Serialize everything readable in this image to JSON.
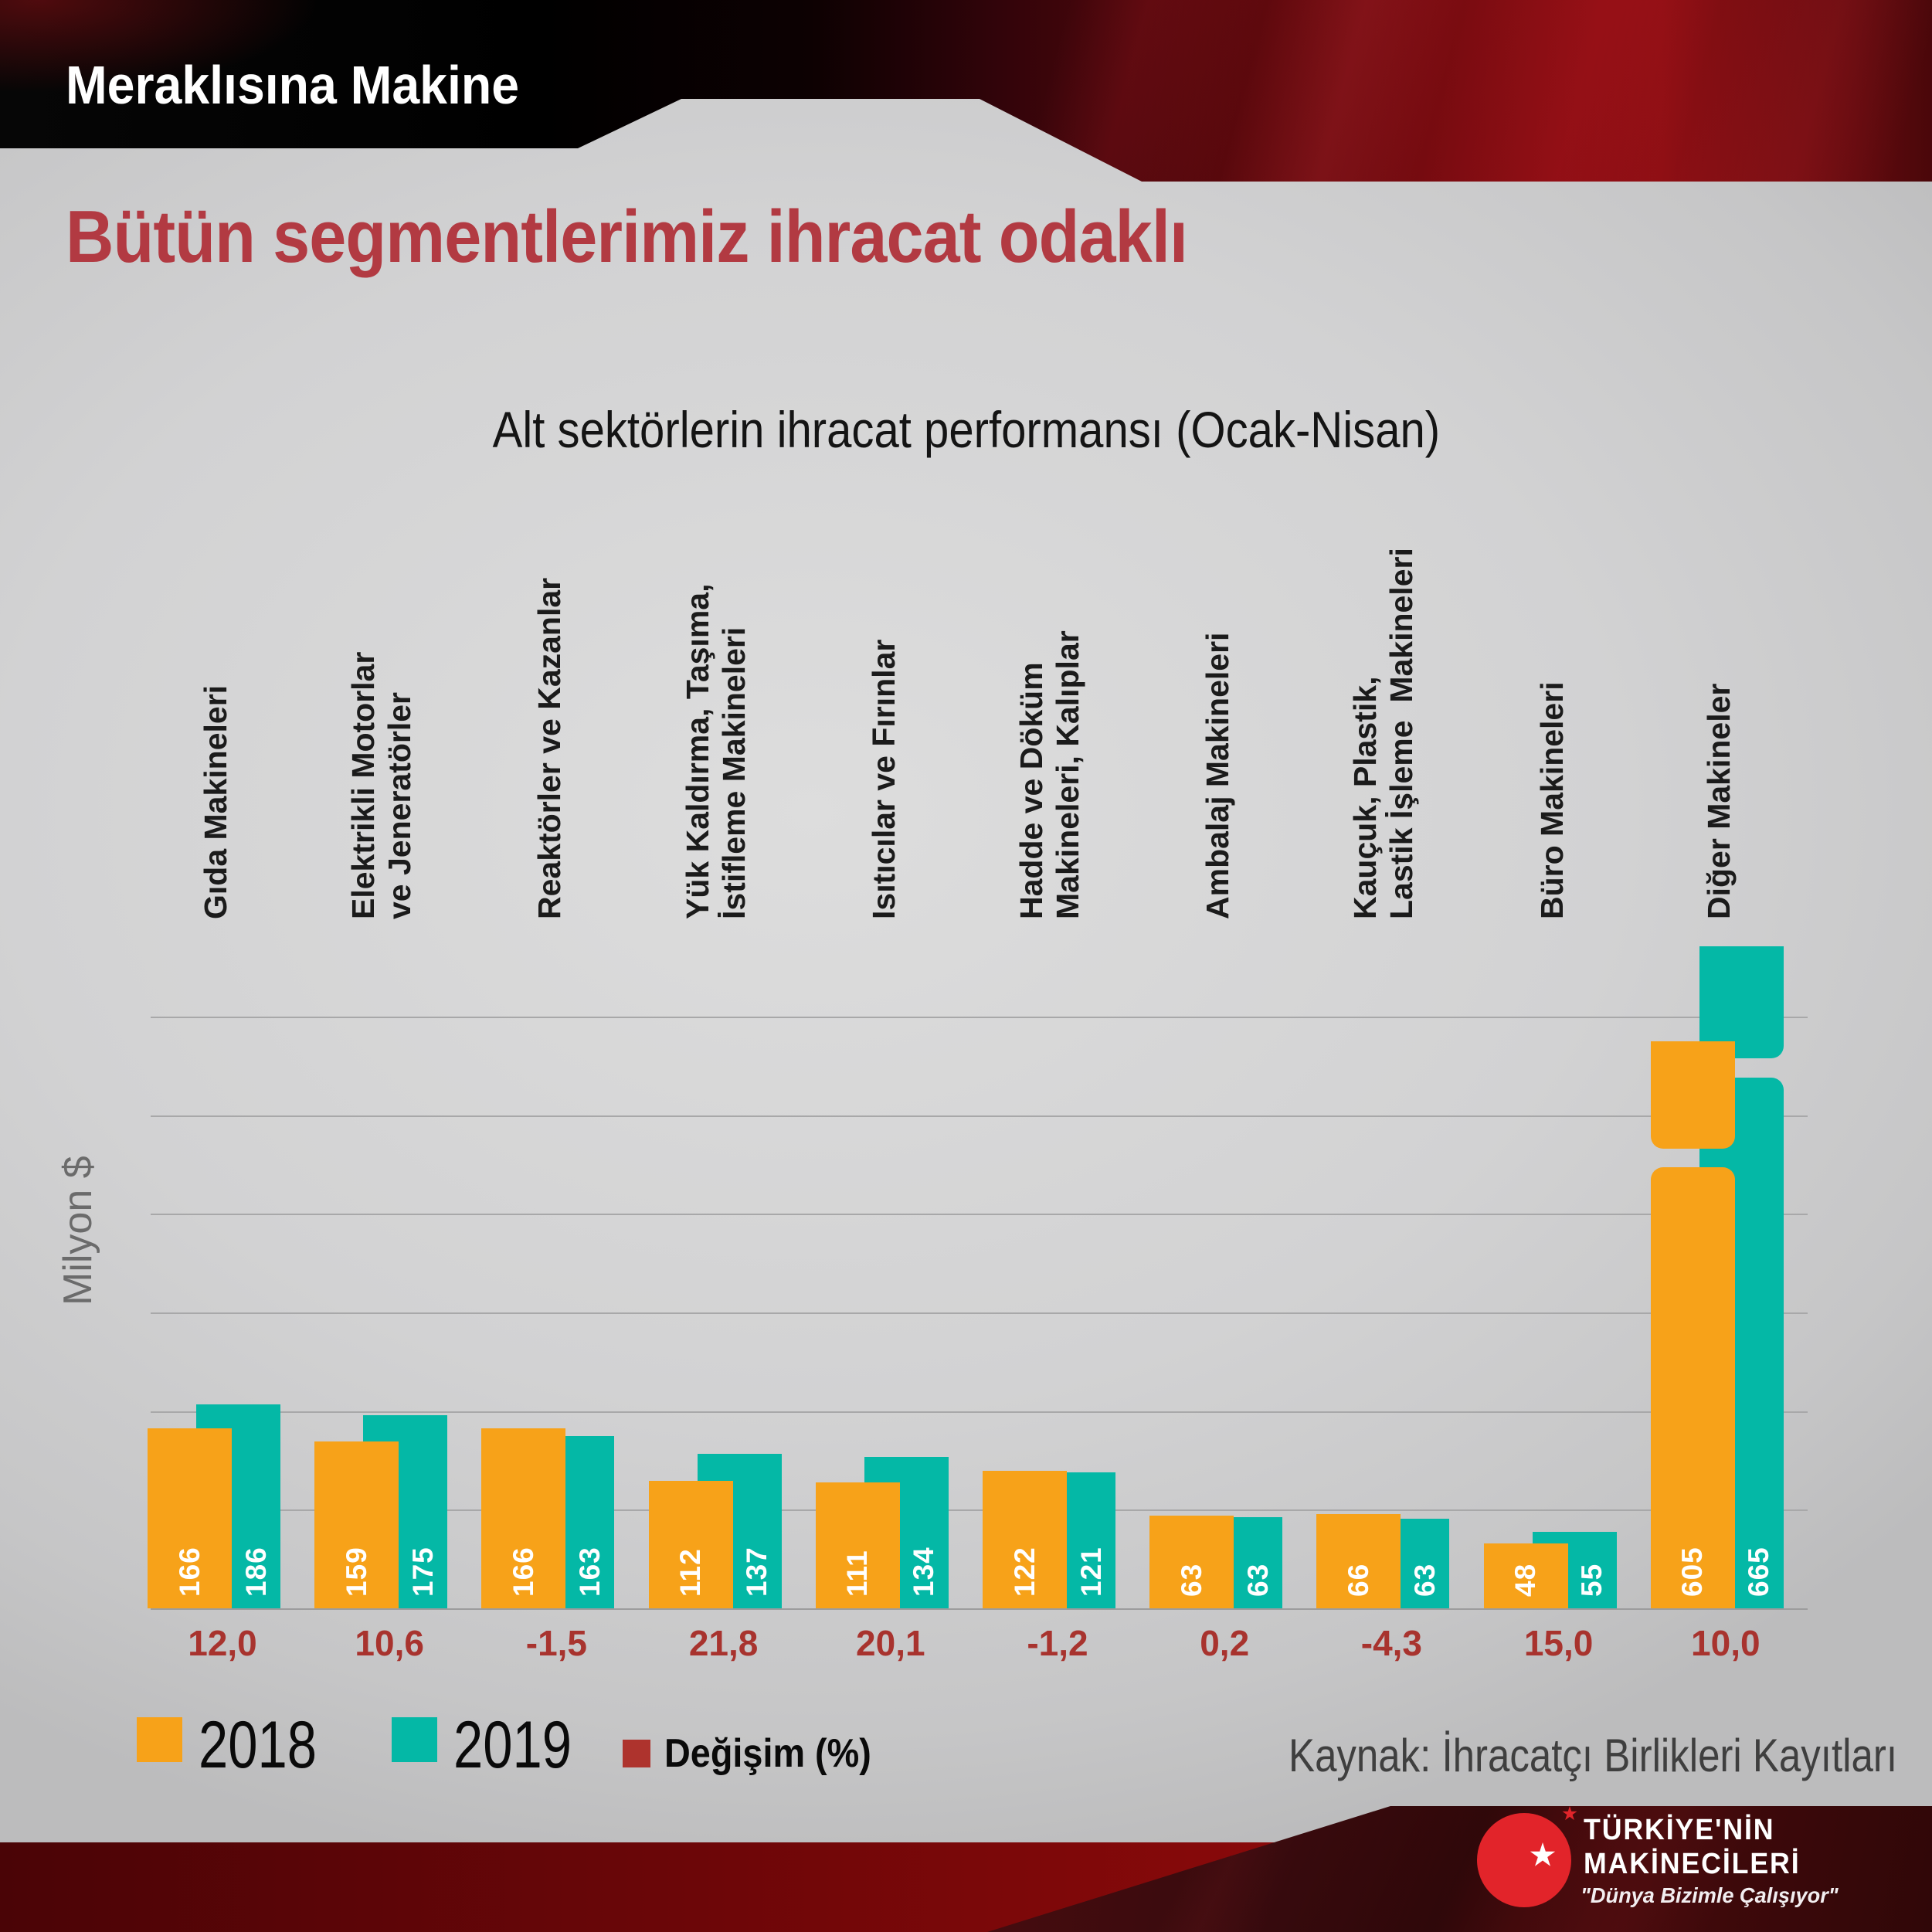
{
  "header": {
    "banner_title": "Meraklısına Makine",
    "page_title": "Bütün segmentlerimiz ihracat odaklı"
  },
  "chart_data": {
    "type": "bar",
    "title": "Alt sektörlerin ihracat performansı (Ocak-Nisan)",
    "ylabel": "Milyon $",
    "grid": "horizontal",
    "legend_position": "bottom-left",
    "categories": [
      "Gıda Makineleri",
      "Elektrikli Motorlar\nve Jeneratörler",
      "Reaktörler ve Kazanlar",
      "Yük Kaldırma, Taşıma,\nİstifleme Makineleri",
      "Isıtıcılar ve Fırınlar",
      "Hadde ve Döküm\nMakineleri, Kalıplar",
      "Ambalaj Makineleri",
      "Kauçuk, Plastik,\nLastik İşleme  Makineleri",
      "Büro Makineleri",
      "Diğer Makineler"
    ],
    "series": [
      {
        "name": "2018",
        "color": "#F7A219",
        "values": [
          166,
          159,
          166,
          112,
          111,
          122,
          63,
          66,
          48,
          605
        ]
      },
      {
        "name": "2019",
        "color": "#04B8A6",
        "values": [
          186,
          175,
          163,
          137,
          134,
          121,
          63,
          63,
          55,
          665
        ]
      }
    ],
    "change_percent": {
      "name": "Değişim (%)",
      "color": "#AE332D",
      "values": [
        "12,0",
        "10,6",
        "-1,5",
        "21,8",
        "20,1",
        "-1,2",
        "0,2",
        "-4,3",
        "15,0",
        "10,0"
      ]
    },
    "axis_break": {
      "applies_to": "Diğer Makineler",
      "note": "tallest pair (605 / 665) drawn with broken bars"
    }
  },
  "footer": {
    "source": "Kaynak: İhracatçı Birlikleri Kayıtları",
    "logo": {
      "line1": "TÜRKİYE'NİN",
      "line2": "MAKİNECİLERİ",
      "tagline": "\"Dünya Bizimle Çalışıyor\""
    }
  }
}
